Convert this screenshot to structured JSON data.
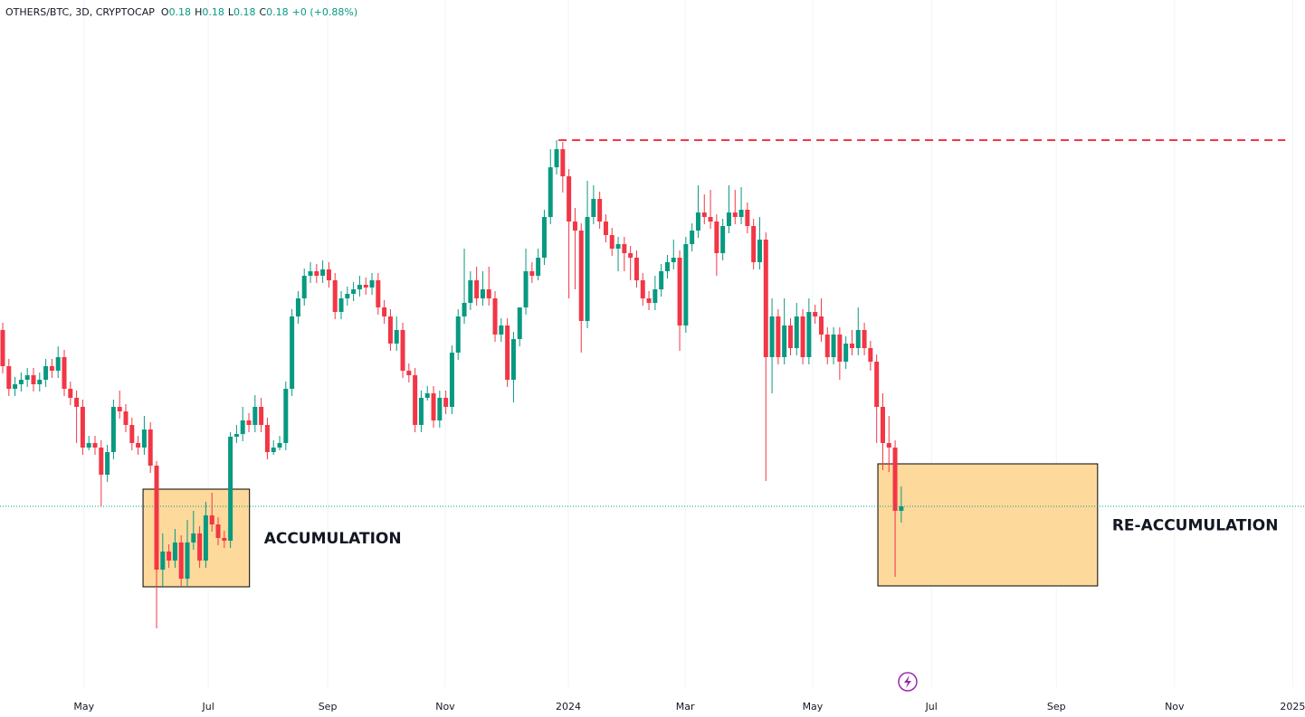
{
  "chart_data": {
    "type": "candlestick",
    "legend": {
      "symbol": "OTHERS/BTC, 3D, CRYPTOCAP",
      "ohlc": [
        {
          "key": "O",
          "value": "0.18"
        },
        {
          "key": "H",
          "value": "0.18"
        },
        {
          "key": "L",
          "value": "0.18"
        },
        {
          "key": "C",
          "value": "0.18"
        }
      ],
      "change": "+0 (+0.88%)"
    },
    "up_color": "#089981",
    "down_color": "#f23645",
    "grid": true,
    "xlim": [
      -0.44,
      211.6
    ],
    "ylim": [
      0.14,
      0.292
    ],
    "xticks": [
      {
        "value": 13.2,
        "label": "May"
      },
      {
        "value": 33.4,
        "label": "Jul"
      },
      {
        "value": 52.8,
        "label": "Sep"
      },
      {
        "value": 71.9,
        "label": "Nov"
      },
      {
        "value": 91.9,
        "label": "2024"
      },
      {
        "value": 110.9,
        "label": "Mar"
      },
      {
        "value": 131.6,
        "label": "May"
      },
      {
        "value": 150.9,
        "label": "Jul"
      },
      {
        "value": 171.2,
        "label": "Sep"
      },
      {
        "value": 190.4,
        "label": "Nov"
      },
      {
        "value": 209.6,
        "label": "2025"
      }
    ],
    "candles": [
      [
        0.219,
        0.2206,
        0.2094,
        0.211
      ],
      [
        0.211,
        0.2126,
        0.2044,
        0.206
      ],
      [
        0.206,
        0.2086,
        0.2044,
        0.207
      ],
      [
        0.207,
        0.2096,
        0.2054,
        0.208
      ],
      [
        0.208,
        0.2106,
        0.2064,
        0.209
      ],
      [
        0.209,
        0.2106,
        0.2054,
        0.207
      ],
      [
        0.207,
        0.2096,
        0.2054,
        0.208
      ],
      [
        0.208,
        0.2126,
        0.2064,
        0.211
      ],
      [
        0.211,
        0.2126,
        0.2084,
        0.21
      ],
      [
        0.21,
        0.2154,
        0.2084,
        0.213
      ],
      [
        0.213,
        0.2146,
        0.2044,
        0.206
      ],
      [
        0.206,
        0.2076,
        0.2024,
        0.204
      ],
      [
        0.204,
        0.2056,
        0.194,
        0.202
      ],
      [
        0.202,
        0.2036,
        0.1914,
        0.193
      ],
      [
        0.193,
        0.1956,
        0.1924,
        0.194
      ],
      [
        0.194,
        0.1956,
        0.1914,
        0.193
      ],
      [
        0.193,
        0.1946,
        0.18,
        0.187
      ],
      [
        0.187,
        0.1936,
        0.1854,
        0.192
      ],
      [
        0.192,
        0.2036,
        0.1904,
        0.202
      ],
      [
        0.202,
        0.2056,
        0.1994,
        0.201
      ],
      [
        0.201,
        0.2026,
        0.1964,
        0.198
      ],
      [
        0.198,
        0.1996,
        0.1924,
        0.194
      ],
      [
        0.194,
        0.1956,
        0.1914,
        0.193
      ],
      [
        0.193,
        0.2,
        0.1914,
        0.197
      ],
      [
        0.197,
        0.1986,
        0.1874,
        0.189
      ],
      [
        0.189,
        0.19,
        0.153,
        0.166
      ],
      [
        0.166,
        0.174,
        0.162,
        0.17
      ],
      [
        0.17,
        0.1716,
        0.1664,
        0.168
      ],
      [
        0.168,
        0.175,
        0.1664,
        0.172
      ],
      [
        0.172,
        0.1736,
        0.1624,
        0.164
      ],
      [
        0.164,
        0.177,
        0.1624,
        0.172
      ],
      [
        0.172,
        0.179,
        0.1704,
        0.174
      ],
      [
        0.174,
        0.1756,
        0.1664,
        0.168
      ],
      [
        0.168,
        0.181,
        0.1664,
        0.178
      ],
      [
        0.178,
        0.183,
        0.1744,
        0.176
      ],
      [
        0.176,
        0.1776,
        0.1714,
        0.173
      ],
      [
        0.173,
        0.1746,
        0.1708,
        0.1724
      ],
      [
        0.1724,
        0.1964,
        0.1708,
        0.1954
      ],
      [
        0.1954,
        0.198,
        0.194,
        0.196
      ],
      [
        0.196,
        0.202,
        0.1944,
        0.199
      ],
      [
        0.199,
        0.2006,
        0.1964,
        0.198
      ],
      [
        0.198,
        0.2046,
        0.1964,
        0.202
      ],
      [
        0.202,
        0.204,
        0.1964,
        0.198
      ],
      [
        0.198,
        0.1996,
        0.1904,
        0.192
      ],
      [
        0.192,
        0.1946,
        0.1914,
        0.193
      ],
      [
        0.193,
        0.1956,
        0.1924,
        0.194
      ],
      [
        0.194,
        0.2076,
        0.1924,
        0.206
      ],
      [
        0.206,
        0.2236,
        0.2044,
        0.222
      ],
      [
        0.222,
        0.2276,
        0.2204,
        0.226
      ],
      [
        0.226,
        0.2326,
        0.2244,
        0.231
      ],
      [
        0.231,
        0.234,
        0.2294,
        0.232
      ],
      [
        0.232,
        0.2336,
        0.2294,
        0.231
      ],
      [
        0.231,
        0.2344,
        0.2294,
        0.2324
      ],
      [
        0.2324,
        0.234,
        0.2284,
        0.23
      ],
      [
        0.23,
        0.2316,
        0.2214,
        0.223
      ],
      [
        0.223,
        0.2276,
        0.2214,
        0.226
      ],
      [
        0.226,
        0.2286,
        0.2244,
        0.227
      ],
      [
        0.227,
        0.2296,
        0.2254,
        0.228
      ],
      [
        0.228,
        0.231,
        0.2264,
        0.229
      ],
      [
        0.229,
        0.2306,
        0.2268,
        0.2284
      ],
      [
        0.2284,
        0.2316,
        0.2268,
        0.23
      ],
      [
        0.23,
        0.2316,
        0.2224,
        0.224
      ],
      [
        0.224,
        0.2256,
        0.2204,
        0.222
      ],
      [
        0.222,
        0.2236,
        0.2144,
        0.216
      ],
      [
        0.216,
        0.222,
        0.2144,
        0.219
      ],
      [
        0.219,
        0.2206,
        0.2084,
        0.21
      ],
      [
        0.21,
        0.2116,
        0.2074,
        0.209
      ],
      [
        0.209,
        0.2106,
        0.1964,
        0.198
      ],
      [
        0.198,
        0.2056,
        0.1964,
        0.204
      ],
      [
        0.204,
        0.2066,
        0.2034,
        0.205
      ],
      [
        0.205,
        0.2066,
        0.1974,
        0.199
      ],
      [
        0.199,
        0.2056,
        0.1974,
        0.204
      ],
      [
        0.204,
        0.2056,
        0.2004,
        0.202
      ],
      [
        0.202,
        0.2156,
        0.2004,
        0.214
      ],
      [
        0.214,
        0.2236,
        0.2124,
        0.222
      ],
      [
        0.222,
        0.237,
        0.2204,
        0.225
      ],
      [
        0.225,
        0.232,
        0.2234,
        0.23
      ],
      [
        0.23,
        0.233,
        0.2244,
        0.226
      ],
      [
        0.226,
        0.232,
        0.2244,
        0.228
      ],
      [
        0.228,
        0.233,
        0.2244,
        0.226
      ],
      [
        0.226,
        0.2276,
        0.2164,
        0.218
      ],
      [
        0.218,
        0.2216,
        0.2164,
        0.22
      ],
      [
        0.22,
        0.2216,
        0.2064,
        0.208
      ],
      [
        0.208,
        0.2186,
        0.203,
        0.217
      ],
      [
        0.217,
        0.2236,
        0.2154,
        0.224
      ],
      [
        0.224,
        0.237,
        0.2224,
        0.232
      ],
      [
        0.232,
        0.234,
        0.2294,
        0.231
      ],
      [
        0.231,
        0.237,
        0.23,
        0.235
      ],
      [
        0.235,
        0.2456,
        0.2334,
        0.244
      ],
      [
        0.244,
        0.259,
        0.2424,
        0.255
      ],
      [
        0.255,
        0.261,
        0.2534,
        0.259
      ],
      [
        0.259,
        0.2606,
        0.2494,
        0.253
      ],
      [
        0.253,
        0.2546,
        0.226,
        0.243
      ],
      [
        0.243,
        0.246,
        0.228,
        0.241
      ],
      [
        0.241,
        0.2426,
        0.214,
        0.221
      ],
      [
        0.221,
        0.252,
        0.2194,
        0.244
      ],
      [
        0.244,
        0.251,
        0.2424,
        0.248
      ],
      [
        0.248,
        0.2496,
        0.2414,
        0.243
      ],
      [
        0.243,
        0.2446,
        0.2384,
        0.24
      ],
      [
        0.24,
        0.2416,
        0.2354,
        0.237
      ],
      [
        0.237,
        0.2396,
        0.232,
        0.238
      ],
      [
        0.238,
        0.2396,
        0.232,
        0.236
      ],
      [
        0.236,
        0.2376,
        0.23,
        0.235
      ],
      [
        0.235,
        0.2366,
        0.2284,
        0.23
      ],
      [
        0.23,
        0.2316,
        0.2244,
        0.226
      ],
      [
        0.226,
        0.2276,
        0.2234,
        0.225
      ],
      [
        0.225,
        0.231,
        0.2234,
        0.228
      ],
      [
        0.228,
        0.2336,
        0.2264,
        0.232
      ],
      [
        0.232,
        0.2356,
        0.2304,
        0.234
      ],
      [
        0.234,
        0.239,
        0.2324,
        0.235
      ],
      [
        0.235,
        0.2366,
        0.2144,
        0.22
      ],
      [
        0.22,
        0.2396,
        0.2184,
        0.238
      ],
      [
        0.238,
        0.2426,
        0.2364,
        0.241
      ],
      [
        0.241,
        0.251,
        0.2394,
        0.245
      ],
      [
        0.245,
        0.249,
        0.2424,
        0.244
      ],
      [
        0.244,
        0.25,
        0.2414,
        0.243
      ],
      [
        0.243,
        0.2446,
        0.231,
        0.236
      ],
      [
        0.236,
        0.2436,
        0.2344,
        0.242
      ],
      [
        0.242,
        0.251,
        0.2404,
        0.245
      ],
      [
        0.245,
        0.25,
        0.2424,
        0.244
      ],
      [
        0.244,
        0.2506,
        0.2424,
        0.2456
      ],
      [
        0.2456,
        0.2472,
        0.2404,
        0.242
      ],
      [
        0.242,
        0.2436,
        0.2324,
        0.234
      ],
      [
        0.234,
        0.244,
        0.2324,
        0.239
      ],
      [
        0.239,
        0.2406,
        0.1856,
        0.213
      ],
      [
        0.213,
        0.226,
        0.205,
        0.222
      ],
      [
        0.222,
        0.2236,
        0.2114,
        0.213
      ],
      [
        0.213,
        0.226,
        0.2114,
        0.22
      ],
      [
        0.22,
        0.2216,
        0.2134,
        0.215
      ],
      [
        0.215,
        0.225,
        0.2134,
        0.222
      ],
      [
        0.222,
        0.2236,
        0.2114,
        0.213
      ],
      [
        0.213,
        0.226,
        0.2114,
        0.223
      ],
      [
        0.223,
        0.2246,
        0.2204,
        0.222
      ],
      [
        0.222,
        0.226,
        0.2164,
        0.218
      ],
      [
        0.218,
        0.2196,
        0.2114,
        0.213
      ],
      [
        0.213,
        0.2196,
        0.2114,
        0.218
      ],
      [
        0.218,
        0.2196,
        0.208,
        0.212
      ],
      [
        0.212,
        0.2176,
        0.2104,
        0.216
      ],
      [
        0.216,
        0.219,
        0.2134,
        0.215
      ],
      [
        0.215,
        0.224,
        0.2134,
        0.219
      ],
      [
        0.219,
        0.2206,
        0.2134,
        0.215
      ],
      [
        0.215,
        0.2166,
        0.21,
        0.212
      ],
      [
        0.212,
        0.2136,
        0.194,
        0.202
      ],
      [
        0.202,
        0.205,
        0.188,
        0.194
      ],
      [
        0.194,
        0.2,
        0.1876,
        0.193
      ],
      [
        0.193,
        0.1946,
        0.1644,
        0.179
      ],
      [
        0.179,
        0.1844,
        0.1764,
        0.18
      ]
    ],
    "hline": {
      "value": 0.261,
      "x": [
        90.3,
        208.4
      ],
      "color": "#f23645"
    },
    "price_line_color": "#089981",
    "boxes": [
      {
        "x": [
          22.8,
          40.1
        ],
        "y": [
          0.1838,
          0.1622
        ],
        "label": "ACCUMULATION"
      },
      {
        "x": [
          142.2,
          177.9
        ],
        "y": [
          0.1894,
          0.1624
        ],
        "label": "RE-ACCUMULATION"
      }
    ],
    "box_color": "#fdd99b"
  }
}
